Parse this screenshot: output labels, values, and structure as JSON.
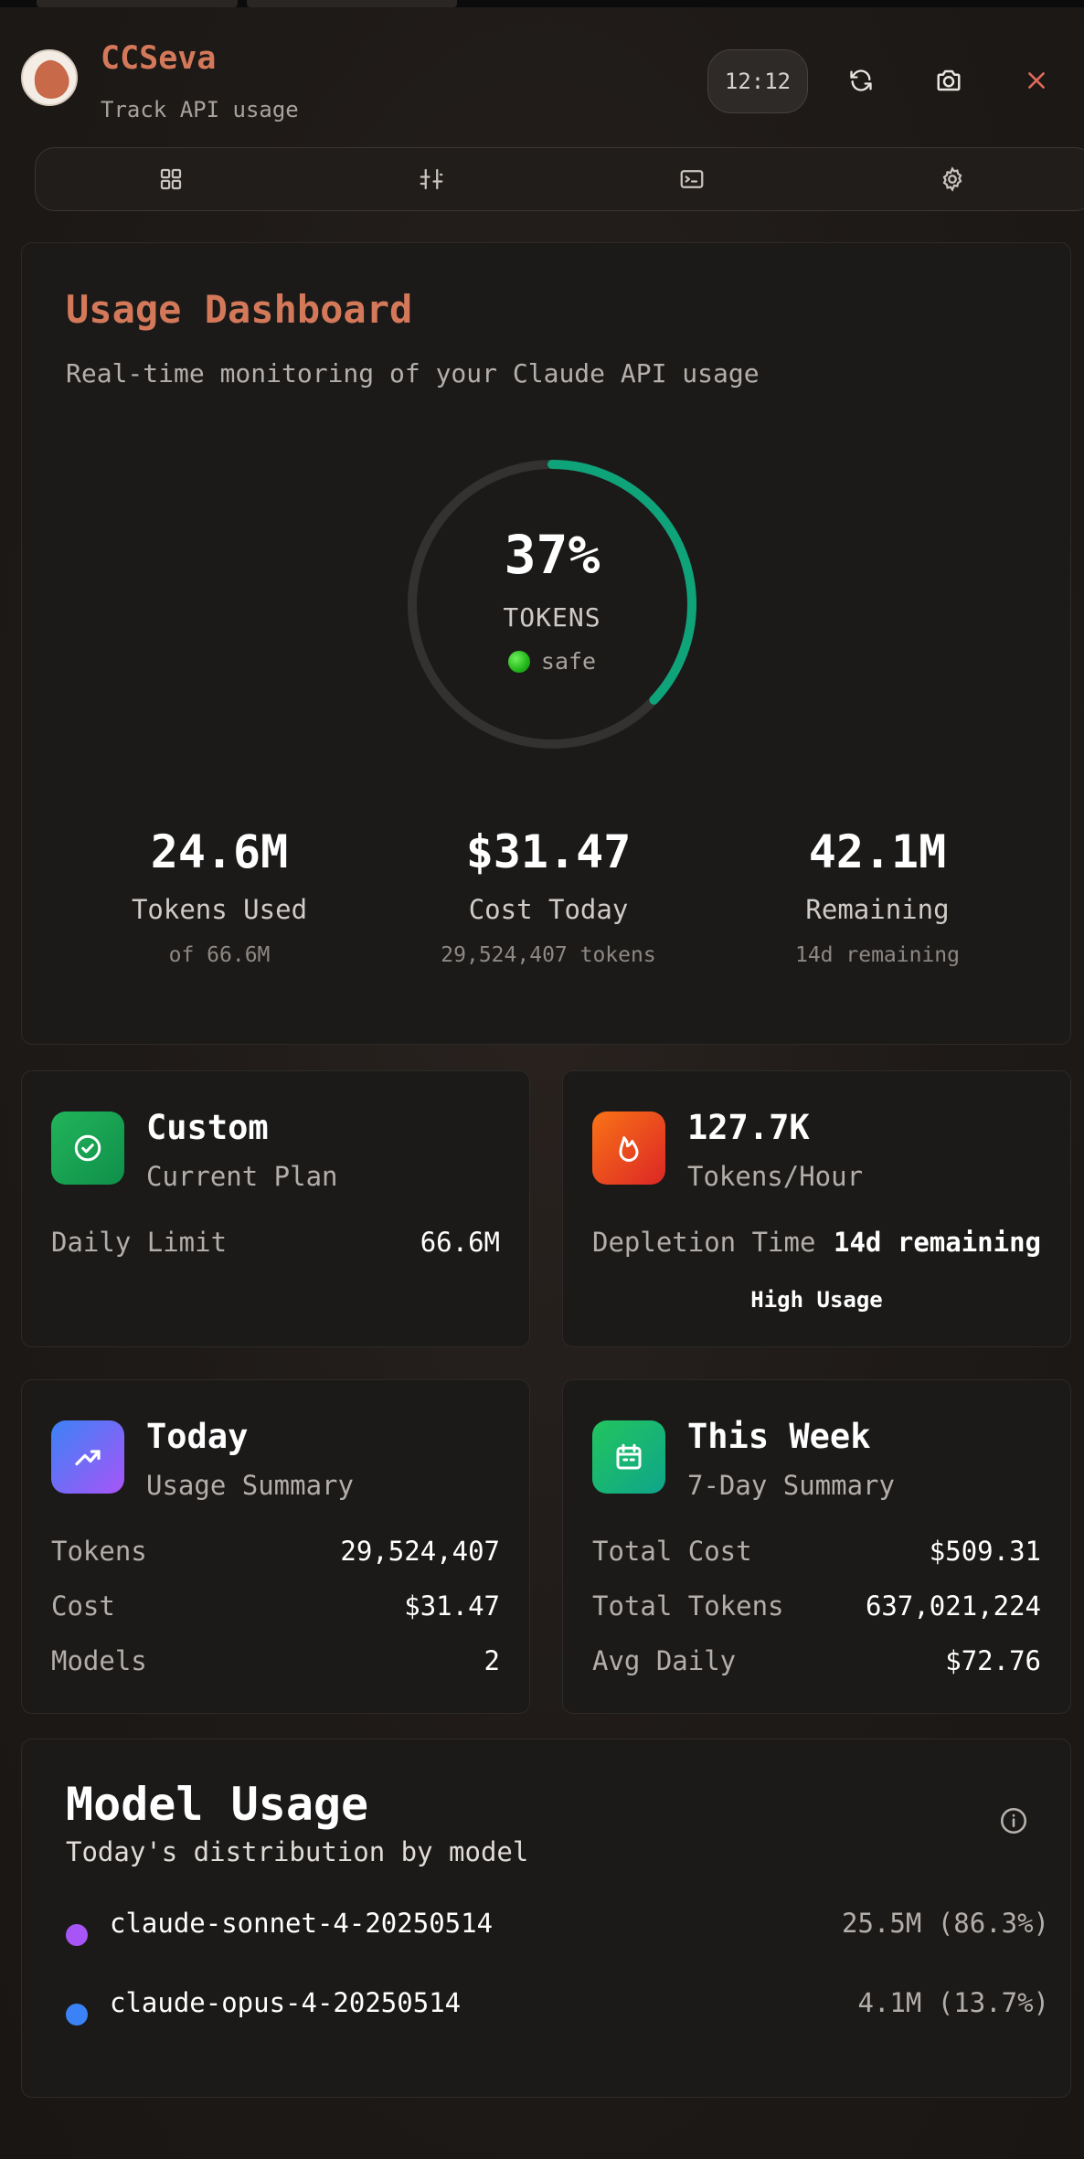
{
  "app": {
    "title": "CCSeva",
    "subtitle": "Track API usage",
    "time": "12:12"
  },
  "nav": {
    "items": [
      "dashboard-icon",
      "analytics-icon",
      "terminal-icon",
      "settings-icon"
    ]
  },
  "dashboard": {
    "title": "Usage Dashboard",
    "subtitle": "Real-time monitoring of your Claude API usage",
    "gauge": {
      "percent_value": 37,
      "percent": "37%",
      "label": "TOKENS",
      "status": "safe",
      "color": "#0fa37a"
    },
    "stats": [
      {
        "value": "24.6M",
        "label": "Tokens Used",
        "sub": "of 66.6M"
      },
      {
        "value": "$31.47",
        "label": "Cost Today",
        "sub": "29,524,407 tokens"
      },
      {
        "value": "42.1M",
        "label": "Remaining",
        "sub": "14d remaining"
      }
    ]
  },
  "plan_card": {
    "title": "Custom",
    "subtitle": "Current Plan",
    "rows": [
      {
        "key": "Daily Limit",
        "value": "66.6M"
      }
    ]
  },
  "rate_card": {
    "title": "127.7K",
    "subtitle": "Tokens/Hour",
    "rows": [
      {
        "key": "Depletion Time",
        "value": "14d remaining"
      }
    ],
    "badge": "High Usage"
  },
  "today_card": {
    "title": "Today",
    "subtitle": "Usage Summary",
    "rows": [
      {
        "key": "Tokens",
        "value": "29,524,407"
      },
      {
        "key": "Cost",
        "value": "$31.47"
      },
      {
        "key": "Models",
        "value": "2"
      }
    ]
  },
  "week_card": {
    "title": "This Week",
    "subtitle": "7-Day Summary",
    "rows": [
      {
        "key": "Total Cost",
        "value": "$509.31"
      },
      {
        "key": "Total Tokens",
        "value": "637,021,224"
      },
      {
        "key": "Avg Daily",
        "value": "$72.76"
      }
    ]
  },
  "model_usage": {
    "title": "Model Usage",
    "subtitle": "Today's distribution by model",
    "models": [
      {
        "name": "claude-sonnet-4-20250514",
        "value": "25.5M (86.3%)",
        "color": "#a855f7"
      },
      {
        "name": "claude-opus-4-20250514",
        "value": "4.1M (13.7%)",
        "color": "#3b82f6"
      }
    ]
  }
}
